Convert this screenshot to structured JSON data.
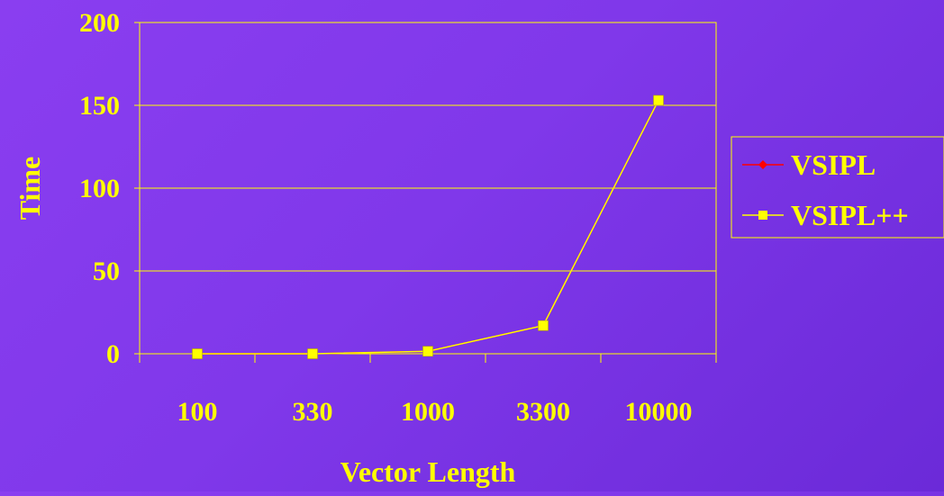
{
  "chart_data": {
    "type": "line",
    "title": "",
    "xlabel": "Vector Length",
    "ylabel": "Time",
    "categories": [
      "100",
      "330",
      "1000",
      "3300",
      "10000"
    ],
    "ylim": [
      0,
      200
    ],
    "yticks": [
      0,
      50,
      100,
      150,
      200
    ],
    "grid": true,
    "legend_position": "right",
    "series": [
      {
        "name": "VSIPL",
        "values": [
          0,
          0,
          1.5,
          17,
          153
        ],
        "color": "#ff0000",
        "marker": "diamond"
      },
      {
        "name": "VSIPL++",
        "values": [
          0,
          0,
          1.5,
          17,
          153
        ],
        "color": "#ffff00",
        "marker": "square"
      }
    ],
    "colors": {
      "axis": "#ffff00",
      "text": "#ffff00",
      "grid": "#ffff00"
    }
  }
}
